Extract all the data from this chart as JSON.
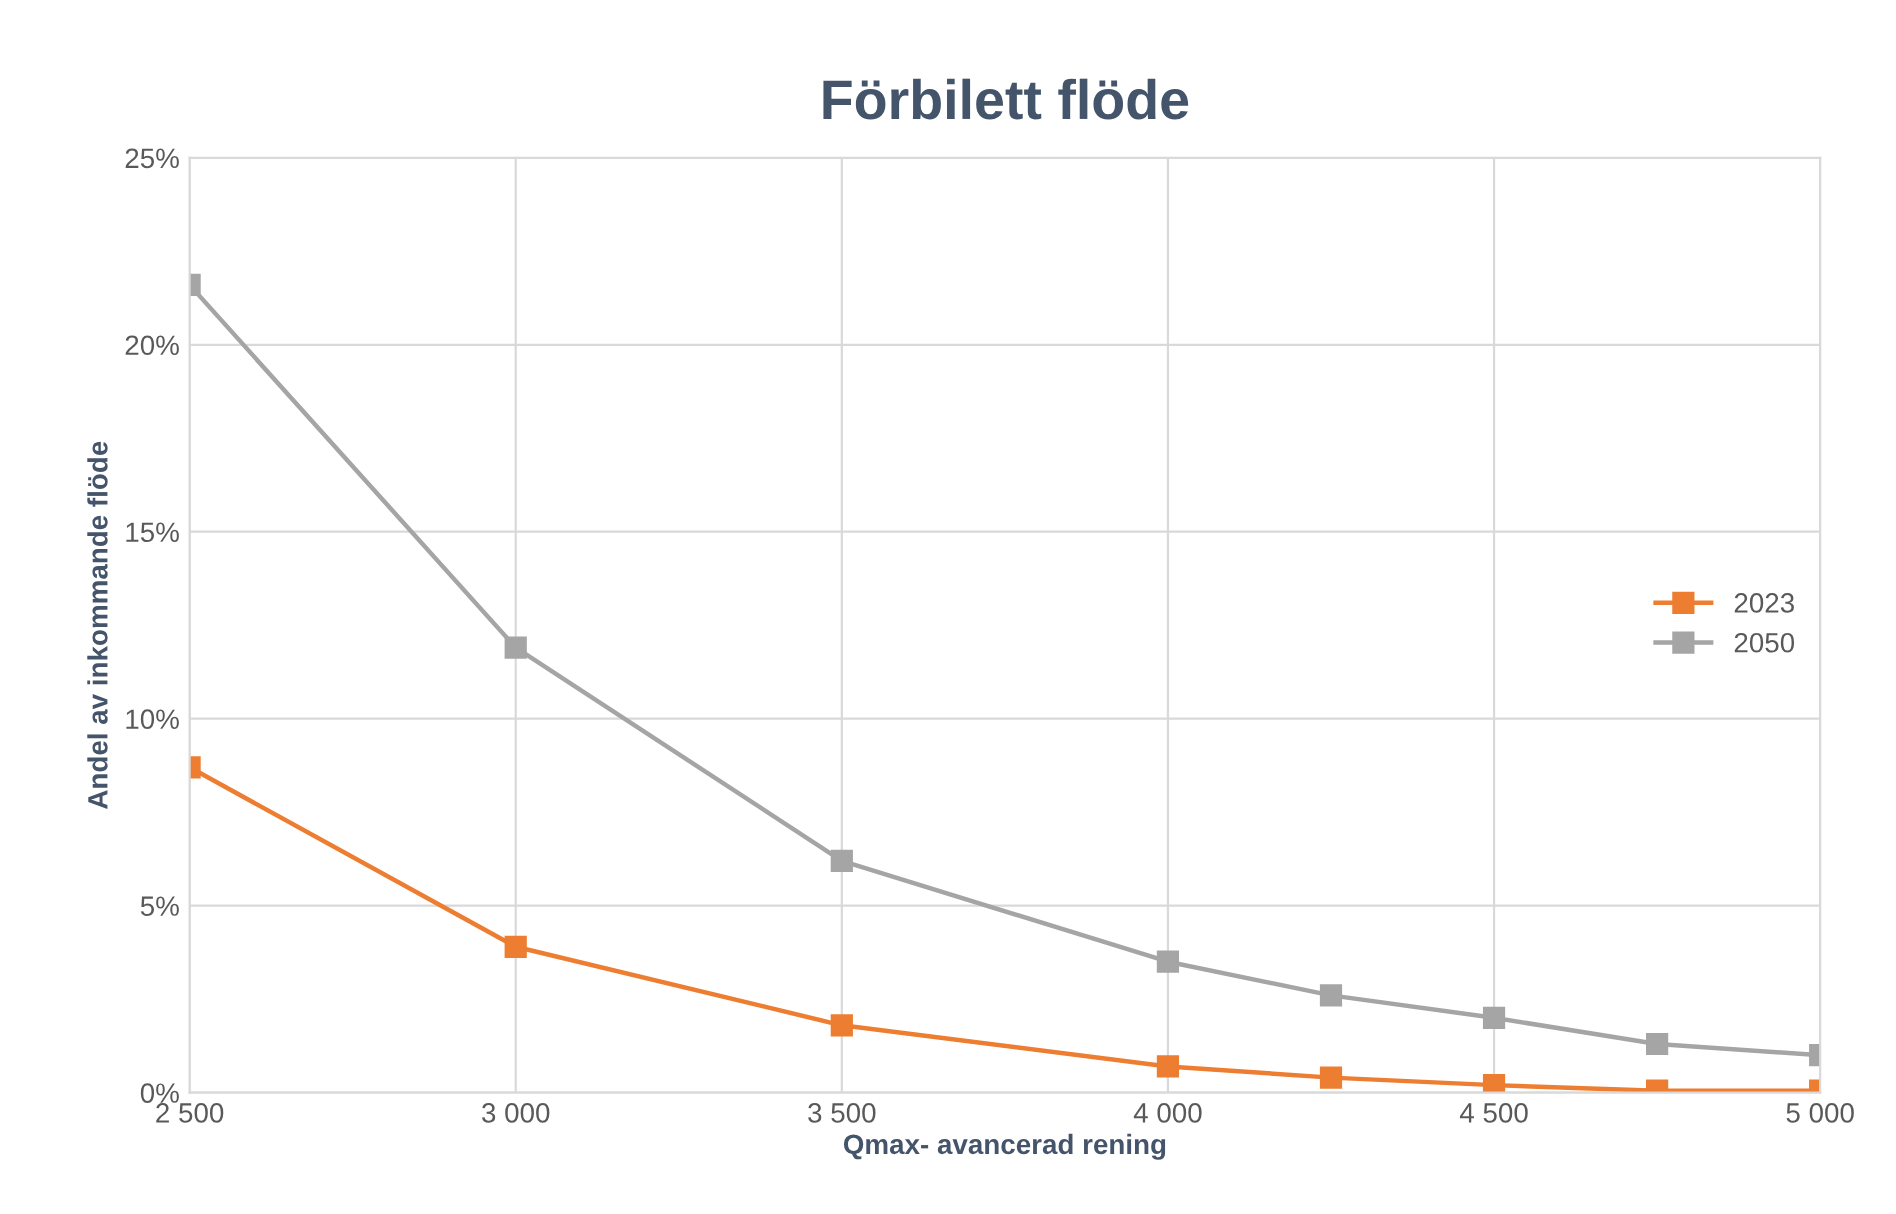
{
  "chart_data": {
    "type": "line",
    "title": "Förbilett flöde",
    "xlabel": "Qmax- avancerad rening",
    "ylabel": "Andel av inkommande flöde",
    "x": [
      2500,
      3000,
      3500,
      4000,
      4250,
      4500,
      4750,
      5000
    ],
    "series": [
      {
        "name": "2023",
        "color": "#ed7d31",
        "values": [
          8.7,
          3.9,
          1.8,
          0.7,
          0.4,
          0.2,
          0.05,
          0.05
        ]
      },
      {
        "name": "2050",
        "color": "#a5a5a5",
        "values": [
          21.6,
          11.9,
          6.2,
          3.5,
          2.6,
          2.0,
          1.3,
          1.0
        ]
      }
    ],
    "xlim": [
      2500,
      5000
    ],
    "xticks": [
      {
        "value": 2500,
        "label": "2 500"
      },
      {
        "value": 3000,
        "label": "3 000"
      },
      {
        "value": 3500,
        "label": "3 500"
      },
      {
        "value": 4000,
        "label": "4 000"
      },
      {
        "value": 4500,
        "label": "4 500"
      },
      {
        "value": 5000,
        "label": "5 000"
      }
    ],
    "ylim": [
      0,
      25
    ],
    "yticks": [
      {
        "value": 0,
        "label": "0%"
      },
      {
        "value": 5,
        "label": "5%"
      },
      {
        "value": 10,
        "label": "10%"
      },
      {
        "value": 15,
        "label": "15%"
      },
      {
        "value": 20,
        "label": "20%"
      },
      {
        "value": 25,
        "label": "25%"
      }
    ],
    "grid": true,
    "legend": "center right",
    "marker": "square",
    "line_style": "solid"
  }
}
